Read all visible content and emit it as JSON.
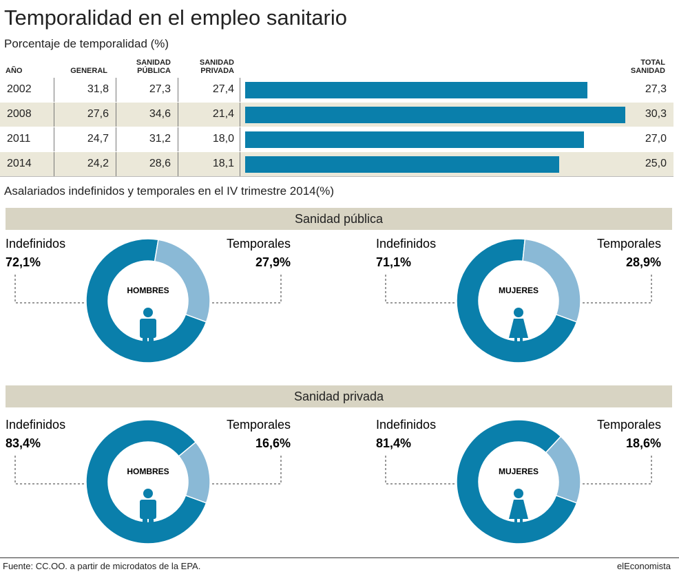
{
  "header": {
    "title": "Temporalidad en el empleo sanitario",
    "subtitle": "Porcentaje de temporalidad (%)"
  },
  "table": {
    "columns": [
      "AÑO",
      "GENERAL",
      "SANIDAD PÚBLICA",
      "SANIDAD PRIVADA",
      "TOTAL SANIDAD"
    ],
    "color": "#0a7fab",
    "rows": [
      {
        "year": "2002",
        "general": "31,8",
        "publica": "27,3",
        "privada": "27,4",
        "total": {
          "value": 27.3,
          "label": "27,3"
        }
      },
      {
        "year": "2008",
        "general": "27,6",
        "publica": "34,6",
        "privada": "21,4",
        "total": {
          "value": 30.3,
          "label": "30,3"
        }
      },
      {
        "year": "2011",
        "general": "24,7",
        "publica": "31,2",
        "privada": "18,0",
        "total": {
          "value": 27.0,
          "label": "27,0"
        }
      },
      {
        "year": "2014",
        "general": "24,2",
        "publica": "28,6",
        "privada": "18,1",
        "total": {
          "value": 25.0,
          "label": "25,0"
        }
      }
    ]
  },
  "section_title": "Asalariados indefinidos y temporales en el IV trimestre 2014(%)",
  "groups": [
    {
      "title": "Sanidad pública",
      "donuts": [
        {
          "center": "HOMBRES",
          "slices": [
            {
              "name": "Indefinidos",
              "value": 72.1,
              "label": "72,1%",
              "color": "#0a7fab"
            },
            {
              "name": "Temporales",
              "value": 27.9,
              "label": "27,9%",
              "color": "#8ab9d6"
            }
          ]
        },
        {
          "center": "MUJERES",
          "slices": [
            {
              "name": "Indefinidos",
              "value": 71.1,
              "label": "71,1%",
              "color": "#0a7fab"
            },
            {
              "name": "Temporales",
              "value": 28.9,
              "label": "28,9%",
              "color": "#8ab9d6"
            }
          ]
        }
      ]
    },
    {
      "title": "Sanidad privada",
      "donuts": [
        {
          "center": "HOMBRES",
          "slices": [
            {
              "name": "Indefinidos",
              "value": 83.4,
              "label": "83,4%",
              "color": "#0a7fab"
            },
            {
              "name": "Temporales",
              "value": 16.6,
              "label": "16,6%",
              "color": "#8ab9d6"
            }
          ]
        },
        {
          "center": "MUJERES",
          "slices": [
            {
              "name": "Indefinidos",
              "value": 81.4,
              "label": "81,4%",
              "color": "#0a7fab"
            },
            {
              "name": "Temporales",
              "value": 18.6,
              "label": "18,6%",
              "color": "#8ab9d6"
            }
          ]
        }
      ]
    }
  ],
  "footer": {
    "source": "Fuente: CC.OO. a partir de microdatos de la EPA.",
    "brand": "elEconomista"
  }
}
